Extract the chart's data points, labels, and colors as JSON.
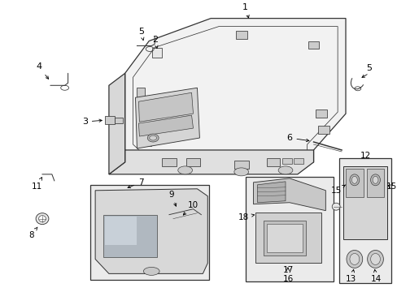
{
  "background_color": "#ffffff",
  "figsize": [
    4.89,
    3.6
  ],
  "dpi": 100,
  "line_color": "#333333",
  "fill_color": "#f2f2f2",
  "box_fill": "#e8e8e8",
  "dark_fill": "#cccccc",
  "lw": 0.9
}
